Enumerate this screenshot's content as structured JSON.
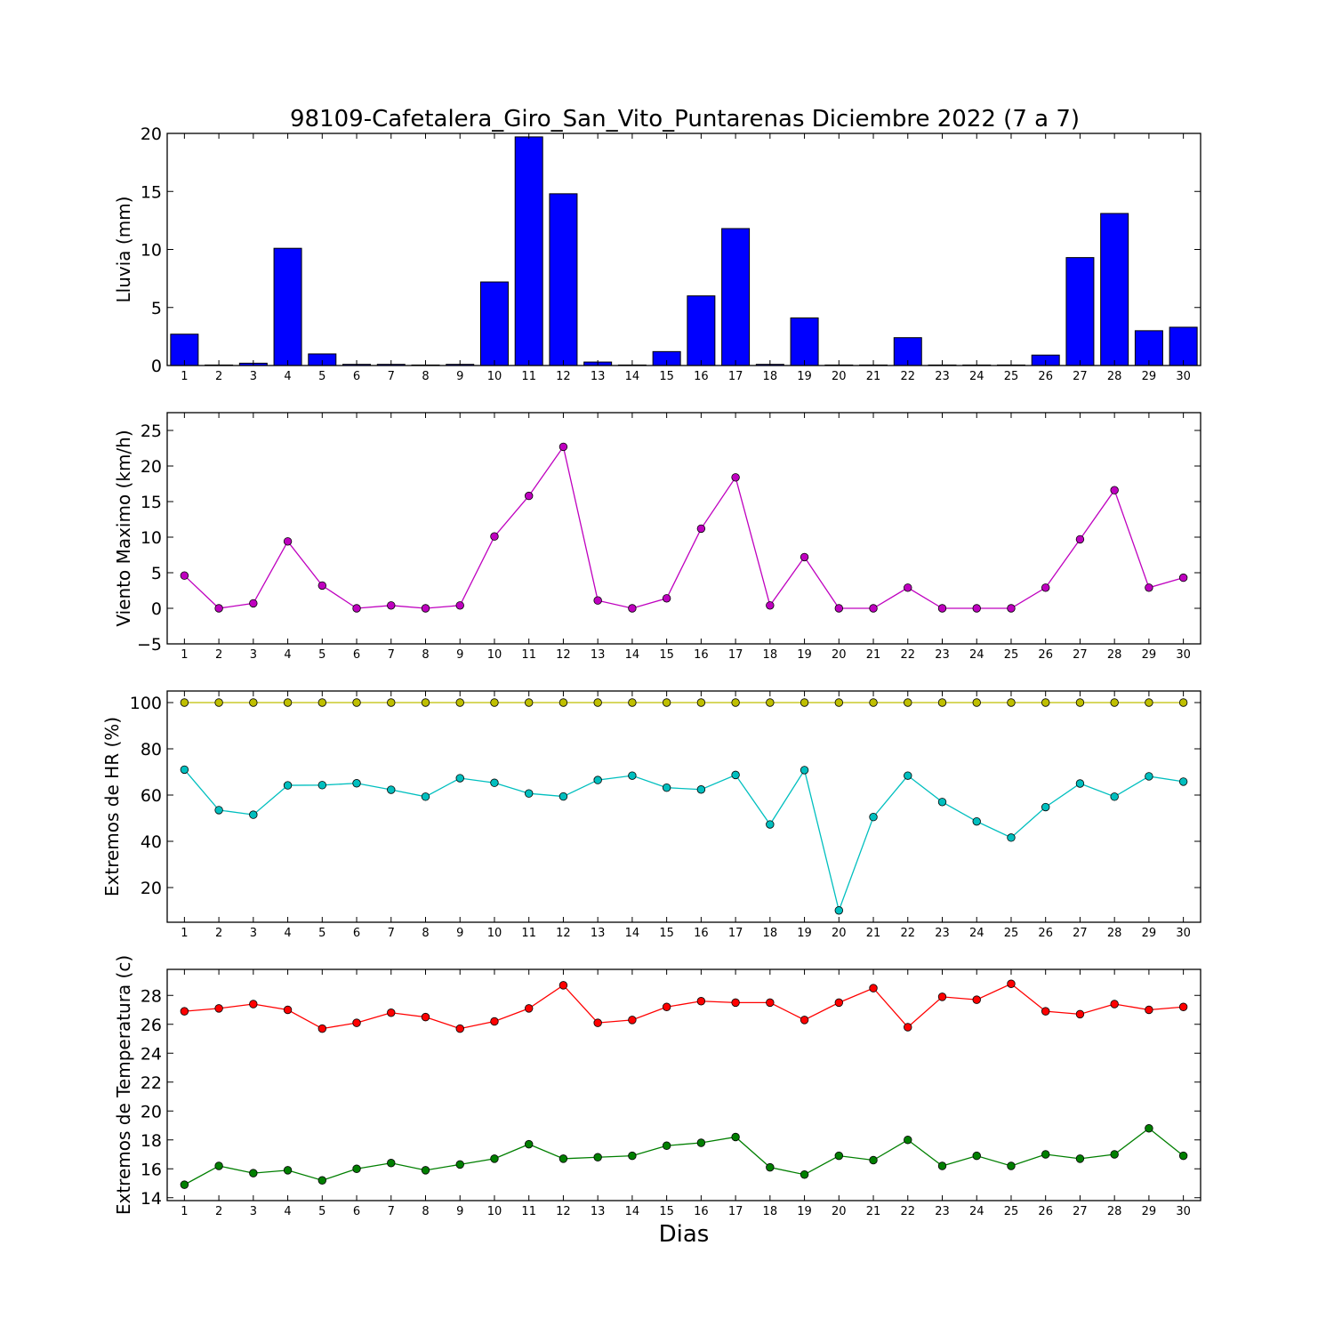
{
  "chart_data": {
    "title": "98109-Cafetalera_Giro_San_Vito_Puntarenas Diciembre 2022  (7 a 7)",
    "xlabel": "Dias",
    "days": [
      1,
      2,
      3,
      4,
      5,
      6,
      7,
      8,
      9,
      10,
      11,
      12,
      13,
      14,
      15,
      16,
      17,
      18,
      19,
      20,
      21,
      22,
      23,
      24,
      25,
      26,
      27,
      28,
      29,
      30
    ],
    "panels": [
      {
        "type": "bar",
        "ylabel": "Lluvia (mm)",
        "ylim": [
          0,
          20
        ],
        "yticks": [
          0,
          5,
          10,
          15,
          20
        ],
        "series": [
          {
            "color": "#0000ff",
            "values": [
              2.7,
              0,
              0.2,
              10.1,
              1.0,
              0.1,
              0.1,
              0,
              0.1,
              7.2,
              19.7,
              14.8,
              0.3,
              0,
              1.2,
              6.0,
              11.8,
              0.1,
              4.1,
              0,
              0,
              2.4,
              0,
              0,
              0,
              0.9,
              9.3,
              13.1,
              3.0,
              3.3
            ]
          }
        ]
      },
      {
        "type": "line",
        "ylabel": "Viento Maximo (km/h)",
        "ylim": [
          -5,
          27.5
        ],
        "yticks": [
          -5,
          0,
          5,
          10,
          15,
          20,
          25
        ],
        "ytick_labels": [
          "−5",
          "0",
          "5",
          "10",
          "15",
          "20",
          "25"
        ],
        "series": [
          {
            "color": "#bf00bf",
            "values": [
              4.6,
              0,
              0.7,
              9.4,
              3.2,
              0,
              0.4,
              0,
              0.4,
              10.1,
              15.8,
              22.7,
              1.1,
              0,
              1.4,
              11.2,
              18.4,
              0.4,
              7.2,
              0,
              0,
              2.9,
              0,
              0,
              0,
              2.9,
              9.7,
              16.6,
              2.9,
              4.3
            ]
          }
        ]
      },
      {
        "type": "line",
        "ylabel": "Extremos de HR (%)",
        "ylim": [
          5,
          105
        ],
        "yticks": [
          20,
          40,
          60,
          80,
          100
        ],
        "series": [
          {
            "color": "#bfbf00",
            "values": [
              100,
              100,
              100,
              100,
              100,
              100,
              100,
              100,
              100,
              100,
              100,
              100,
              100,
              100,
              100,
              100,
              100,
              100,
              100,
              100,
              100,
              100,
              100,
              100,
              100,
              100,
              100,
              100,
              100,
              100
            ]
          },
          {
            "color": "#00bfbf",
            "values": [
              71,
              53.5,
              51.5,
              64.2,
              64.3,
              65.1,
              62.3,
              59.3,
              67.3,
              65.3,
              60.7,
              59.4,
              66.5,
              68.4,
              63.2,
              62.4,
              68.7,
              47.3,
              70.8,
              10.1,
              50.5,
              68.4,
              57,
              48.6,
              41.6,
              54.8,
              65,
              59.3,
              68.1,
              65.8
            ]
          }
        ]
      },
      {
        "type": "line",
        "ylabel": "Extremos de Temperatura (c)",
        "ylim": [
          13.8,
          29.8
        ],
        "yticks": [
          14,
          16,
          18,
          20,
          22,
          24,
          26,
          28
        ],
        "series": [
          {
            "color": "#ff0000",
            "values": [
              26.9,
              27.1,
              27.4,
              27.0,
              25.7,
              26.1,
              26.8,
              26.5,
              25.7,
              26.2,
              27.1,
              28.7,
              26.1,
              26.3,
              27.2,
              27.6,
              27.5,
              27.5,
              26.3,
              27.5,
              28.5,
              25.8,
              27.9,
              27.7,
              28.8,
              26.9,
              26.7,
              27.4,
              27.0,
              27.2
            ]
          },
          {
            "color": "#007f00",
            "values": [
              14.9,
              16.2,
              15.7,
              15.9,
              15.2,
              16.0,
              16.4,
              15.9,
              16.3,
              16.7,
              17.7,
              16.7,
              16.8,
              16.9,
              17.6,
              17.8,
              18.2,
              16.1,
              15.6,
              16.9,
              16.6,
              18.0,
              16.2,
              16.9,
              16.2,
              17.0,
              16.7,
              17.0,
              18.8,
              16.9
            ]
          }
        ]
      }
    ]
  }
}
